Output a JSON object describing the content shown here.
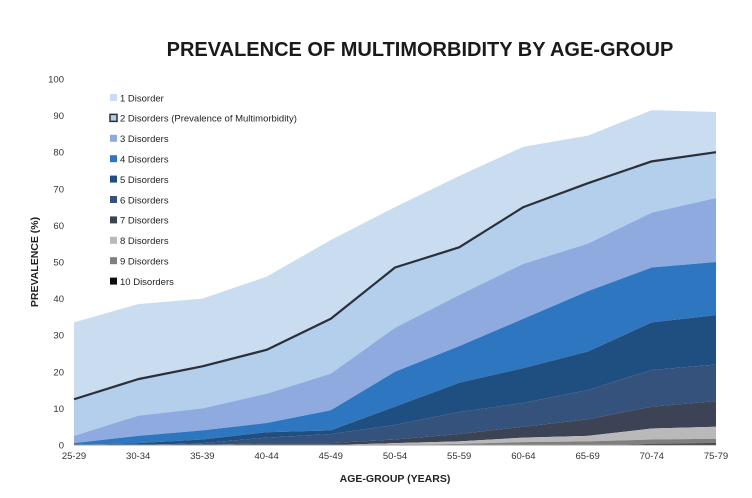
{
  "chart_data": {
    "type": "area",
    "stacked": true,
    "title": "PREVALENCE OF MULTIMORBIDITY BY AGE-GROUP",
    "xlabel": "AGE-GROUP (YEARS)",
    "ylabel": "PREVALENCE (%)",
    "ylim": [
      0,
      100
    ],
    "yticks": [
      0,
      10,
      20,
      30,
      40,
      50,
      60,
      70,
      80,
      90,
      100
    ],
    "grid": false,
    "legend_position": "top-left",
    "categories": [
      "25-29",
      "30-34",
      "35-39",
      "40-44",
      "45-49",
      "50-54",
      "55-59",
      "60-64",
      "65-69",
      "70-74",
      "75-79"
    ],
    "series": [
      {
        "name": "1 Disorder",
        "color": "#c9dcf0",
        "cumulative": [
          33.5,
          38.5,
          40,
          46,
          56,
          65,
          73.5,
          81.5,
          84.5,
          91.5,
          91
        ]
      },
      {
        "name": "2 Disorders (Prevalence of Multimorbidity)",
        "color": "#b3cfeb",
        "cumulative": [
          12.5,
          18,
          21.5,
          26,
          34.5,
          48.5,
          54,
          65,
          71.5,
          77.5,
          80
        ],
        "outlined": true
      },
      {
        "name": "3 Disorders",
        "color": "#8faadf",
        "cumulative": [
          2.5,
          8,
          10,
          14,
          19.5,
          32,
          41,
          49.5,
          55,
          63.5,
          67.5
        ]
      },
      {
        "name": "4 Disorders",
        "color": "#2f76c0",
        "cumulative": [
          0.5,
          2.5,
          4,
          6,
          9.5,
          20,
          27,
          34.5,
          42,
          48.5,
          50
        ]
      },
      {
        "name": "5 Disorders",
        "color": "#1e4f80",
        "cumulative": [
          0,
          0.5,
          1.5,
          3.5,
          4,
          10.5,
          17,
          21,
          25.5,
          33.5,
          35.5
        ]
      },
      {
        "name": "6 Disorders",
        "color": "#34527c",
        "cumulative": [
          0,
          0,
          0.5,
          2,
          3,
          5.5,
          9,
          11.5,
          15,
          20.5,
          22
        ]
      },
      {
        "name": "7 Disorders",
        "color": "#3b4354",
        "cumulative": [
          0,
          0,
          0,
          0.5,
          0.5,
          1.5,
          3,
          5,
          7,
          10.5,
          12
        ]
      },
      {
        "name": "8 Disorders",
        "color": "#b9b9b9",
        "cumulative": [
          0,
          0,
          0,
          0,
          0,
          0.5,
          1,
          2,
          2.5,
          4.5,
          5
        ]
      },
      {
        "name": "9 Disorders",
        "color": "#7f7f7f",
        "cumulative": [
          0,
          0,
          0,
          0,
          0,
          0,
          0.3,
          0.8,
          1,
          1.5,
          1.7
        ]
      },
      {
        "name": "10 Disorders",
        "color": "#0d0d0d",
        "cumulative": [
          0,
          0,
          0,
          0,
          0,
          0,
          0,
          0,
          0,
          0.3,
          0.4
        ]
      }
    ]
  }
}
